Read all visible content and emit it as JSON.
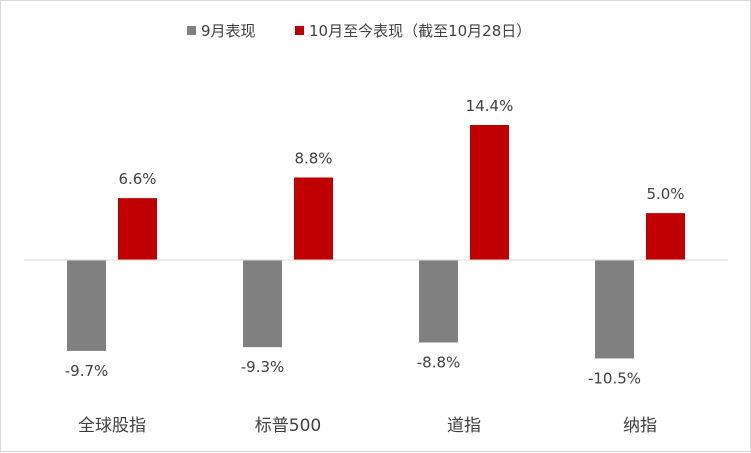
{
  "chart_data": {
    "type": "bar",
    "categories": [
      "全球股指",
      "标普500",
      "道指",
      "纳指"
    ],
    "series": [
      {
        "name": "9月表现",
        "values": [
          -9.7,
          -9.3,
          -8.8,
          -10.5
        ],
        "labels": [
          "-9.7%",
          "-9.3%",
          "-8.8%",
          "-10.5%"
        ],
        "color": "#808080"
      },
      {
        "name": "10月至今表现（截至10月28日）",
        "values": [
          6.6,
          8.8,
          14.4,
          5.0
        ],
        "labels": [
          "6.6%",
          "8.8%",
          "14.4%",
          "5.0%"
        ],
        "color": "#c00000"
      }
    ],
    "ylim": [
      -12,
      16
    ],
    "legend_position": "top",
    "grid": false,
    "unit": "%"
  }
}
